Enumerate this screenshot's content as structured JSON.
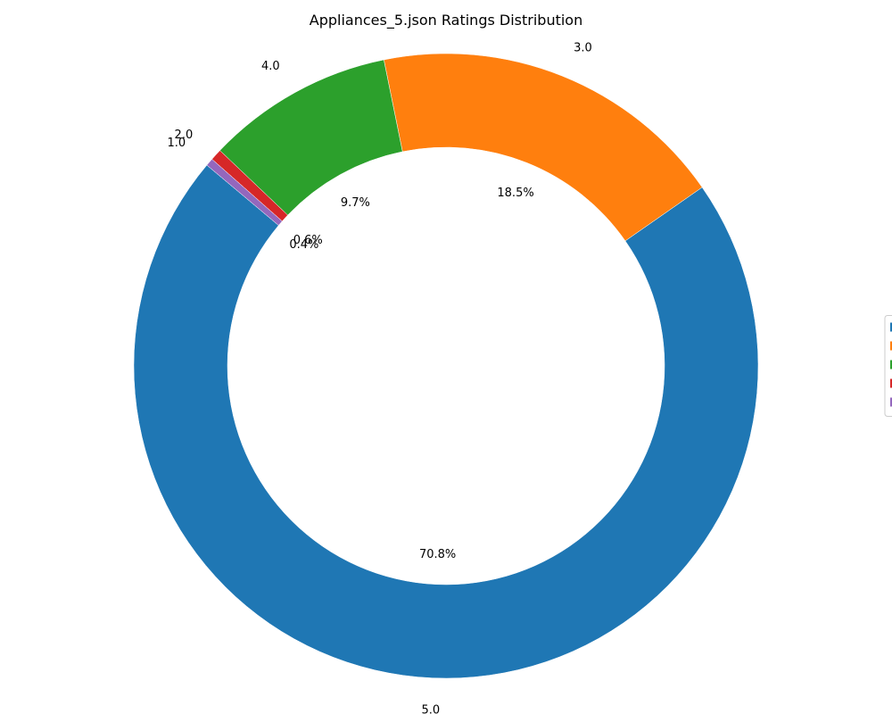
{
  "chart_data": {
    "type": "pie",
    "title": "Appliances_5.json Ratings Distribution",
    "donut": true,
    "categories": [
      "5.0",
      "3.0",
      "4.0",
      "2.0",
      "1.0"
    ],
    "values": [
      70.8,
      18.5,
      9.7,
      0.6,
      0.4
    ],
    "percent_labels": [
      "70.8%",
      "18.5%",
      "9.7%",
      "0.6%",
      "0.4%"
    ],
    "colors": [
      "#1f77b4",
      "#ff7f0e",
      "#2ca02c",
      "#d62728",
      "#9467bd"
    ],
    "legend_placement": "center-right",
    "start_angle_deg": 140,
    "direction": "counterclockwise"
  }
}
